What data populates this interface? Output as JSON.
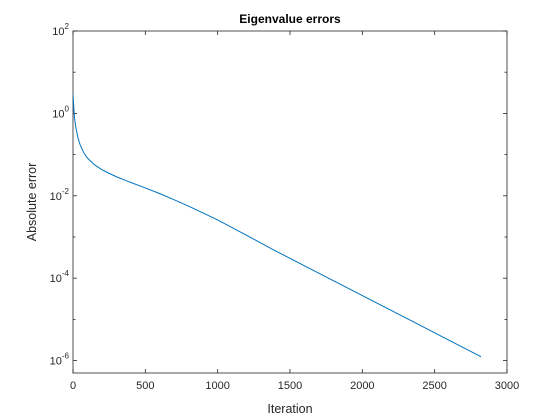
{
  "chart_data": {
    "type": "line",
    "title": "Eigenvalue errors",
    "xlabel": "Iteration",
    "ylabel": "Absolute error",
    "xlim": [
      0,
      3000
    ],
    "ylim": [
      5e-07,
      100
    ],
    "yscale": "log",
    "xticks": [
      0,
      500,
      1000,
      1500,
      2000,
      2500,
      3000
    ],
    "xtick_labels": [
      "0",
      "500",
      "1000",
      "1500",
      "2000",
      "2500",
      "3000"
    ],
    "yticks": [
      {
        "value": 100.0,
        "base": "10",
        "exponent": "2"
      },
      {
        "value": 1.0,
        "base": "10",
        "exponent": "0"
      },
      {
        "value": 0.01,
        "base": "10",
        "exponent": "-2"
      },
      {
        "value": 0.0001,
        "base": "10",
        "exponent": "-4"
      },
      {
        "value": 1e-06,
        "base": "10",
        "exponent": "-6"
      }
    ],
    "grid": false,
    "box": true,
    "series": [
      {
        "color": "#0072bd",
        "x": [
          0,
          5,
          10,
          20,
          35,
          50,
          75,
          100,
          150,
          200,
          250,
          300,
          400,
          500,
          600,
          700,
          800,
          900,
          1000,
          1200,
          1400,
          1600,
          1800,
          2000,
          2200,
          2400,
          2600,
          2800,
          2820
        ],
        "y": [
          3,
          1.5,
          0.8,
          0.45,
          0.25,
          0.17,
          0.11,
          0.082,
          0.056,
          0.043,
          0.035,
          0.029,
          0.021,
          0.0155,
          0.0113,
          0.008,
          0.0056,
          0.0038,
          0.0026,
          0.0011,
          0.00046,
          0.0002,
          8.7e-05,
          3.8e-05,
          1.65e-05,
          7.2e-06,
          3.1e-06,
          1.35e-06,
          1.24e-06
        ]
      }
    ]
  }
}
